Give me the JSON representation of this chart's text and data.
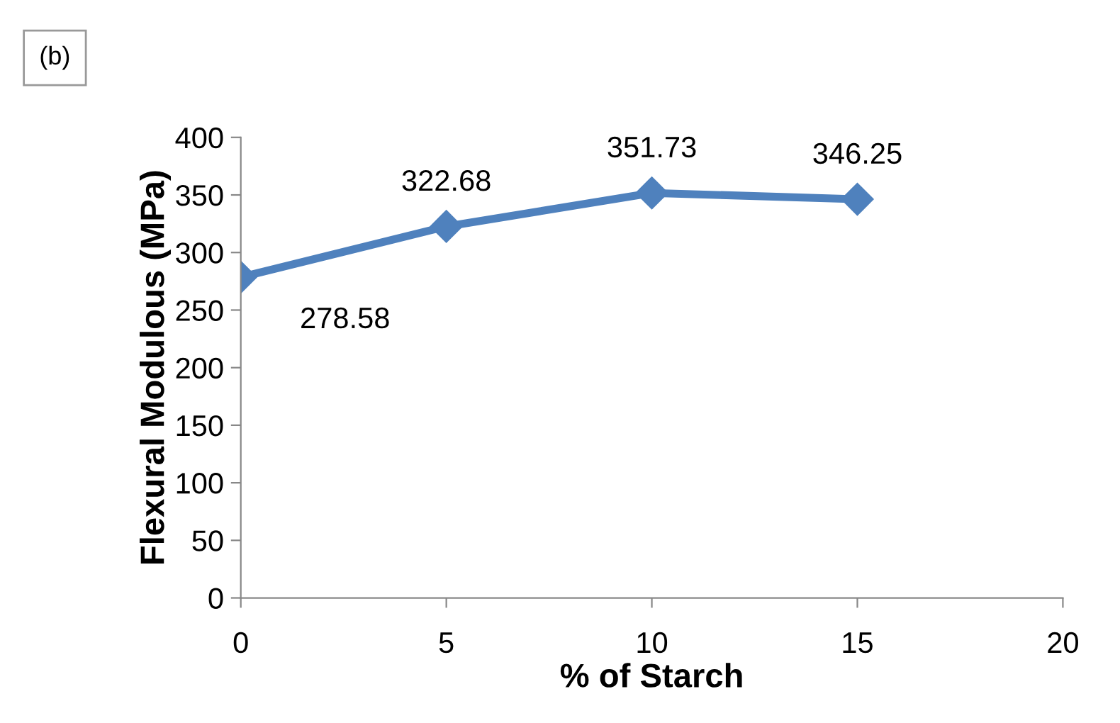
{
  "chart_data": {
    "type": "line",
    "xlabel": "% of Starch",
    "ylabel": "Flexural Modulous (MPa)",
    "annotations": [
      "(b)"
    ],
    "x": [
      0,
      5,
      10,
      15
    ],
    "series": [
      {
        "color": "#4f81bd",
        "values": [
          278.58,
          322.68,
          351.73,
          346.25
        ]
      }
    ],
    "xlim": [
      0,
      20
    ],
    "xticks": [
      0,
      5,
      10,
      15,
      20
    ],
    "ylim": [
      0,
      400
    ],
    "yticks": [
      0,
      50,
      100,
      150,
      200,
      250,
      300,
      350,
      400
    ],
    "grid": false,
    "legend": false,
    "marker": "diamond",
    "line_style": "solid",
    "data_labels": true
  }
}
